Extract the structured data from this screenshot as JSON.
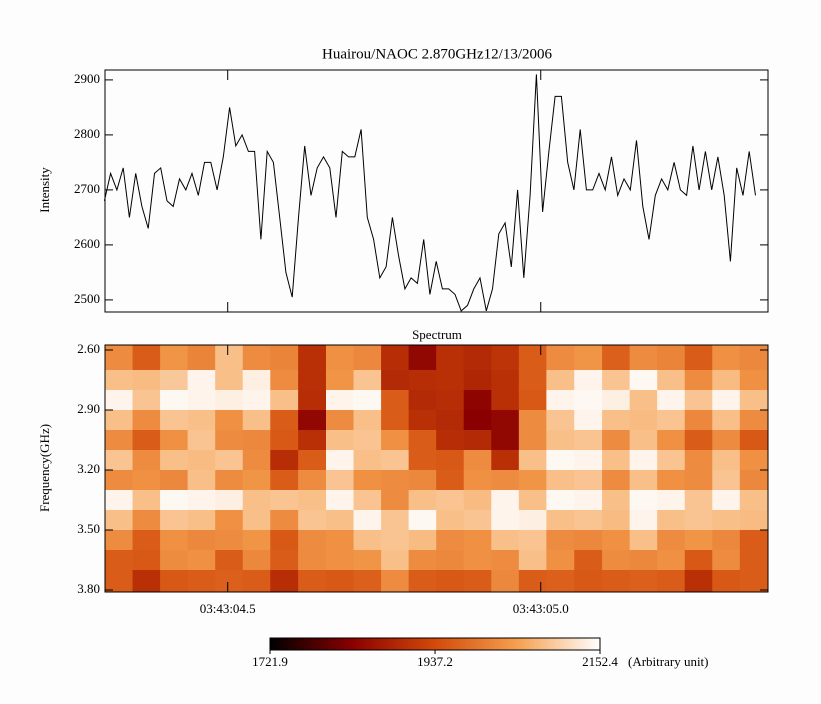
{
  "chart_data": [
    {
      "type": "line",
      "title": "Huairou/NAOC  2.870GHz12/13/2006",
      "ylabel": "Intensity",
      "color": "#000000",
      "xlim": [
        4.304,
        5.363
      ],
      "ylim": [
        2478,
        2918
      ],
      "yticks": [
        2500,
        2600,
        2700,
        2800,
        2900
      ],
      "x": [
        4.303,
        4.313,
        4.323,
        4.333,
        4.343,
        4.353,
        4.363,
        4.373,
        4.383,
        4.393,
        4.403,
        4.413,
        4.423,
        4.433,
        4.443,
        4.453,
        4.463,
        4.473,
        4.483,
        4.493,
        4.503,
        4.513,
        4.523,
        4.533,
        4.543,
        4.553,
        4.563,
        4.573,
        4.583,
        4.593,
        4.603,
        4.613,
        4.623,
        4.633,
        4.643,
        4.653,
        4.663,
        4.673,
        4.683,
        4.693,
        4.703,
        4.713,
        4.723,
        4.733,
        4.743,
        4.753,
        4.763,
        4.773,
        4.783,
        4.793,
        4.803,
        4.813,
        4.823,
        4.833,
        4.843,
        4.853,
        4.863,
        4.873,
        4.883,
        4.893,
        4.903,
        4.913,
        4.923,
        4.933,
        4.943,
        4.953,
        4.963,
        4.973,
        4.983,
        4.993,
        5.003,
        5.013,
        5.023,
        5.033,
        5.043,
        5.053,
        5.063,
        5.073,
        5.083,
        5.093,
        5.103,
        5.113,
        5.123,
        5.133,
        5.143,
        5.153,
        5.163,
        5.173,
        5.183,
        5.193,
        5.203,
        5.213,
        5.223,
        5.233,
        5.243,
        5.253,
        5.263,
        5.273,
        5.283,
        5.293,
        5.303,
        5.313,
        5.323,
        5.333,
        5.343
      ],
      "values": [
        2680,
        2730,
        2700,
        2740,
        2650,
        2730,
        2670,
        2630,
        2730,
        2740,
        2680,
        2670,
        2720,
        2700,
        2730,
        2690,
        2750,
        2750,
        2700,
        2760,
        2850,
        2780,
        2800,
        2770,
        2770,
        2610,
        2770,
        2750,
        2650,
        2550,
        2505,
        2650,
        2780,
        2690,
        2740,
        2760,
        2740,
        2650,
        2770,
        2760,
        2760,
        2810,
        2650,
        2610,
        2540,
        2560,
        2650,
        2580,
        2520,
        2540,
        2530,
        2610,
        2510,
        2570,
        2520,
        2520,
        2510,
        2480,
        2490,
        2520,
        2540,
        2480,
        2520,
        2620,
        2640,
        2560,
        2700,
        2540,
        2690,
        2910,
        2660,
        2770,
        2870,
        2870,
        2750,
        2700,
        2810,
        2700,
        2700,
        2730,
        2700,
        2760,
        2690,
        2720,
        2700,
        2790,
        2670,
        2610,
        2690,
        2720,
        2700,
        2750,
        2700,
        2690,
        2780,
        2700,
        2770,
        2700,
        2760,
        2690,
        2570,
        2740,
        2690,
        2770,
        2690
      ]
    },
    {
      "type": "heatmap",
      "title": "Spectrum",
      "ylabel": "Frequency(GHz)",
      "xlim": [
        4.304,
        5.363
      ],
      "ylim": [
        2.575,
        3.81
      ],
      "y_inverted": true,
      "xticks": [
        {
          "value": 4.5,
          "label": "03:43:04.5"
        },
        {
          "value": 5.0,
          "label": "03:43:05.0"
        }
      ],
      "yticks": [
        {
          "value": 2.6,
          "label": "2.60"
        },
        {
          "value": 2.9,
          "label": "2.90"
        },
        {
          "value": 3.2,
          "label": "3.20"
        },
        {
          "value": 3.5,
          "label": "3.50"
        },
        {
          "value": 3.8,
          "label": "3.80"
        }
      ],
      "x": [
        4.326,
        4.37,
        4.414,
        4.458,
        4.502,
        4.546,
        4.59,
        4.635,
        4.679,
        4.723,
        4.767,
        4.811,
        4.855,
        4.899,
        4.943,
        4.987,
        5.031,
        5.076,
        5.12,
        5.164,
        5.208,
        5.252,
        5.296,
        5.34
      ],
      "y": [
        2.65,
        2.75,
        2.85,
        2.95,
        3.05,
        3.15,
        3.25,
        3.35,
        3.45,
        3.55,
        3.65,
        3.75
      ],
      "z": [
        [
          2020,
          1960,
          2030,
          2010,
          2080,
          2020,
          2010,
          1900,
          2025,
          2015,
          1895,
          1840,
          1900,
          1890,
          1905,
          1960,
          2020,
          2030,
          1965,
          2020,
          2010,
          1960,
          2025,
          2015
        ],
        [
          2080,
          2075,
          2090,
          2140,
          2080,
          2135,
          2020,
          1900,
          2030,
          2085,
          1890,
          1895,
          1900,
          1885,
          1900,
          1960,
          2080,
          2140,
          2085,
          2145,
          2080,
          2020,
          2075,
          2025
        ],
        [
          2140,
          2085,
          2145,
          2140,
          2135,
          2140,
          2080,
          1895,
          2140,
          2145,
          1960,
          1890,
          1895,
          1835,
          1900,
          1955,
          2140,
          2145,
          2135,
          2080,
          2140,
          2085,
          2140,
          2080
        ],
        [
          2080,
          2020,
          2085,
          2080,
          2025,
          2080,
          1960,
          1840,
          2020,
          2080,
          1960,
          1900,
          1890,
          1830,
          1840,
          2020,
          2085,
          2140,
          2080,
          2075,
          2085,
          2015,
          2080,
          2020
        ],
        [
          2020,
          1960,
          2025,
          2085,
          2020,
          2015,
          1955,
          1900,
          2080,
          2085,
          2025,
          1960,
          1895,
          1890,
          1840,
          2020,
          2080,
          2085,
          2020,
          2080,
          2025,
          1960,
          2020,
          1955
        ],
        [
          2085,
          2020,
          2080,
          2075,
          2085,
          2020,
          1895,
          1960,
          2140,
          2080,
          2085,
          1960,
          1955,
          2020,
          1900,
          2080,
          2145,
          2140,
          2080,
          2140,
          2085,
          2020,
          2080,
          2025
        ],
        [
          2020,
          2025,
          2015,
          2080,
          2020,
          2030,
          1960,
          2020,
          2085,
          2025,
          2020,
          2015,
          1960,
          2025,
          2020,
          2030,
          2080,
          2085,
          2020,
          2080,
          2025,
          2020,
          2085,
          2015
        ],
        [
          2140,
          2080,
          2145,
          2140,
          2135,
          2080,
          2085,
          2080,
          2140,
          2085,
          2020,
          2080,
          2085,
          2075,
          2140,
          2080,
          2145,
          2140,
          2080,
          2145,
          2140,
          2085,
          2140,
          2080
        ],
        [
          2080,
          2020,
          2085,
          2080,
          2025,
          2080,
          2020,
          2085,
          2080,
          2140,
          2085,
          2145,
          2080,
          2085,
          2140,
          2135,
          2080,
          2085,
          2075,
          2140,
          2080,
          2085,
          2080,
          2075
        ],
        [
          2020,
          1960,
          2025,
          2015,
          2020,
          2030,
          1955,
          2020,
          2025,
          2080,
          2085,
          2075,
          2020,
          2025,
          2080,
          2085,
          2020,
          2015,
          2025,
          2080,
          2020,
          2030,
          2015,
          1960
        ],
        [
          1960,
          1955,
          2020,
          2025,
          1960,
          2015,
          1960,
          2020,
          2025,
          2030,
          2080,
          2020,
          2015,
          2025,
          2020,
          2080,
          2025,
          1960,
          2020,
          2015,
          2025,
          1955,
          2020,
          1960
        ],
        [
          1960,
          1900,
          1955,
          1960,
          1965,
          1960,
          1895,
          1960,
          1955,
          1965,
          2020,
          1960,
          1955,
          1960,
          2015,
          1960,
          1965,
          1955,
          1960,
          1965,
          1960,
          1900,
          1955,
          1960
        ]
      ],
      "zlim": [
        1721.9,
        2152.4
      ],
      "zticks": [
        1721.9,
        1937.2,
        2152.4
      ],
      "zlabel": "(Arbitrary unit)",
      "colormap": [
        "#000000",
        "#8a0000",
        "#d24a0a",
        "#f5a050",
        "#ffffff"
      ]
    }
  ]
}
